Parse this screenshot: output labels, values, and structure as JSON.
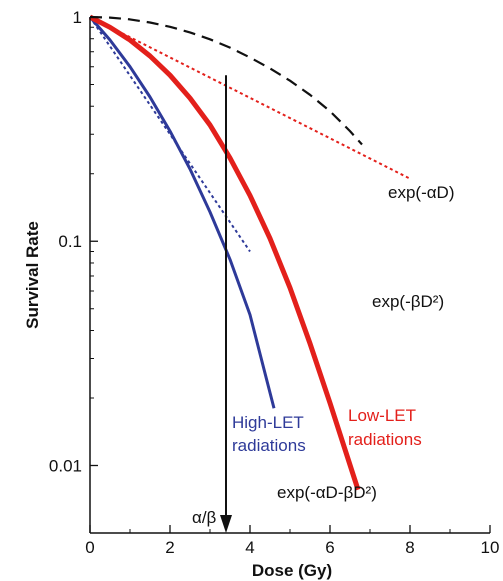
{
  "chart_data": {
    "type": "line",
    "title": "",
    "xlabel": "Dose (Gy)",
    "ylabel": "Survival Rate",
    "xlim": [
      0,
      10
    ],
    "ylim": [
      0.005,
      1
    ],
    "yscale": "log",
    "grid": false,
    "x_ticks": [
      "0",
      "2",
      "4",
      "6",
      "8",
      "10"
    ],
    "y_ticks": [
      {
        "value": 1,
        "label": "1"
      },
      {
        "value": 0.1,
        "label": "0.1"
      },
      {
        "value": 0.01,
        "label": "0.01"
      }
    ],
    "series": [
      {
        "label": "High-LET radiations",
        "color": "#2e3a99",
        "style": "solid",
        "x": [
          0,
          0.5,
          1,
          1.5,
          2,
          2.5,
          3,
          3.5,
          4,
          4.6
        ],
        "y": [
          1,
          0.79,
          0.6,
          0.44,
          0.31,
          0.21,
          0.135,
          0.083,
          0.047,
          0.018
        ]
      },
      {
        "label": "High-LET initial slope",
        "color": "#2e3a99",
        "style": "dotted",
        "x": [
          0,
          4
        ],
        "y": [
          1,
          0.09
        ]
      },
      {
        "label": "Low-LET radiations",
        "color": "#e3201b",
        "style": "solid",
        "x": [
          0,
          0.5,
          1,
          1.5,
          2,
          2.5,
          3,
          3.5,
          4,
          4.5,
          5,
          5.5,
          6,
          6.7
        ],
        "y": [
          1,
          0.9,
          0.79,
          0.67,
          0.55,
          0.435,
          0.33,
          0.235,
          0.16,
          0.103,
          0.062,
          0.035,
          0.019,
          0.0078
        ]
      },
      {
        "label": "exp(-αD)",
        "color": "#e3201b",
        "style": "dotted",
        "x": [
          0,
          8
        ],
        "y": [
          1,
          0.19
        ]
      },
      {
        "label": "exp(-βD²)",
        "color": "#111111",
        "style": "dashed",
        "x": [
          0,
          0.5,
          1,
          1.5,
          2,
          2.5,
          3,
          3.5,
          4,
          4.5,
          5,
          5.5,
          6,
          6.5,
          6.8
        ],
        "y": [
          1,
          0.994,
          0.976,
          0.945,
          0.904,
          0.854,
          0.795,
          0.73,
          0.66,
          0.59,
          0.52,
          0.45,
          0.38,
          0.31,
          0.27
        ]
      }
    ],
    "annotations": {
      "exp_alpha": "exp(-αD)",
      "exp_beta": "exp(-βD²)",
      "exp_combined": "exp(-αD-βD²)",
      "alpha_beta": "α/β",
      "high_let_line1": "High-LET",
      "high_let_line2": "radiations",
      "low_let_line1": "Low-LET",
      "low_let_line2": "radiations"
    },
    "alpha_beta_dose": 3.4,
    "colors": {
      "high_let": "#2e3a99",
      "low_let": "#e3201b",
      "axis": "#111111"
    }
  }
}
